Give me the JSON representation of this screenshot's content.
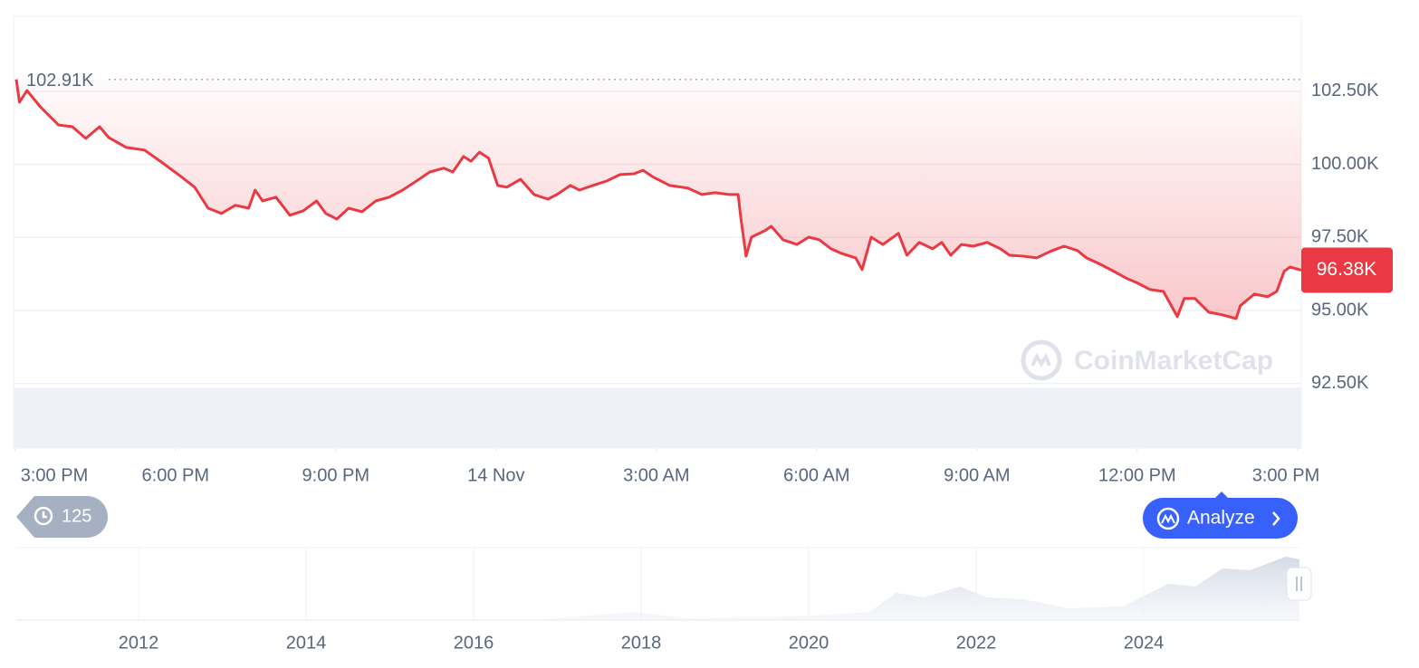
{
  "chart_data": {
    "type": "line",
    "x": [
      -8.98,
      -8.92,
      -8.78,
      -8.53,
      -8.19,
      -7.93,
      -7.68,
      -7.42,
      -7.25,
      -6.92,
      -6.58,
      -6.24,
      -5.9,
      -5.64,
      -5.39,
      -5.14,
      -4.88,
      -4.63,
      -4.51,
      -4.37,
      -4.12,
      -3.86,
      -3.61,
      -3.36,
      -3.19,
      -2.98,
      -2.76,
      -2.51,
      -2.25,
      -2.0,
      -1.75,
      -1.49,
      -1.24,
      -0.98,
      -0.81,
      -0.61,
      -0.47,
      -0.31,
      -0.14,
      0.03,
      0.2,
      0.46,
      0.71,
      0.97,
      1.14,
      1.39,
      1.56,
      1.81,
      2.07,
      2.32,
      2.58,
      2.75,
      2.92,
      3.25,
      3.59,
      3.85,
      4.1,
      4.36,
      4.53,
      4.58,
      4.68,
      4.78,
      5.03,
      5.15,
      5.37,
      5.63,
      5.85,
      6.05,
      6.27,
      6.47,
      6.73,
      6.85,
      7.02,
      7.24,
      7.53,
      7.69,
      7.92,
      8.17,
      8.34,
      8.51,
      8.71,
      8.93,
      9.19,
      9.44,
      9.61,
      9.86,
      10.12,
      10.37,
      10.63,
      10.88,
      11.05,
      11.31,
      11.56,
      11.81,
      11.98,
      12.24,
      12.49,
      12.75,
      12.88,
      13.08,
      13.34,
      13.59,
      13.85,
      13.93,
      14.19,
      14.44,
      14.61,
      14.75,
      14.86,
      15.07
    ],
    "values": [
      102910,
      102130,
      102530,
      101970,
      101350,
      101290,
      100890,
      101290,
      100920,
      100580,
      100490,
      100050,
      99590,
      99220,
      98500,
      98320,
      98600,
      98500,
      99120,
      98750,
      98880,
      98260,
      98410,
      98750,
      98320,
      98130,
      98500,
      98380,
      98750,
      98880,
      99120,
      99430,
      99740,
      99870,
      99740,
      100270,
      100110,
      100420,
      100210,
      99280,
      99220,
      99490,
      98970,
      98810,
      98970,
      99280,
      99120,
      99280,
      99430,
      99650,
      99680,
      99800,
      99590,
      99280,
      99190,
      98970,
      99030,
      98970,
      98970,
      98190,
      96860,
      97510,
      97730,
      97880,
      97420,
      97260,
      97510,
      97420,
      97110,
      96950,
      96800,
      96400,
      97510,
      97260,
      97640,
      96890,
      97330,
      97110,
      97330,
      96890,
      97260,
      97200,
      97330,
      97110,
      96890,
      96860,
      96800,
      97020,
      97200,
      97050,
      96800,
      96580,
      96340,
      96090,
      95960,
      95720,
      95650,
      94790,
      95410,
      95410,
      94940,
      94850,
      94720,
      95160,
      95560,
      95470,
      95650,
      96340,
      96490,
      96380
    ],
    "color": "#ea3943",
    "xlim": [
      -9.03,
      15.07
    ],
    "xticks": [
      {
        "value": -9,
        "label": "3:00 PM"
      },
      {
        "value": -6,
        "label": "6:00 PM"
      },
      {
        "value": -3,
        "label": "9:00 PM"
      },
      {
        "value": 0,
        "label": "14 Nov"
      },
      {
        "value": 3,
        "label": "3:00 AM"
      },
      {
        "value": 6,
        "label": "6:00 AM"
      },
      {
        "value": 9,
        "label": "9:00 AM"
      },
      {
        "value": 12,
        "label": "12:00 PM"
      },
      {
        "value": 15,
        "label": "3:00 PM"
      }
    ],
    "ylim": [
      90290,
      105070
    ],
    "yticks": [
      {
        "value": 92500,
        "label": "92.50K"
      },
      {
        "value": 95000,
        "label": "95.00K"
      },
      {
        "value": 97500,
        "label": "97.50K"
      },
      {
        "value": 100000,
        "label": "100.00K"
      },
      {
        "value": 102500,
        "label": "102.50K"
      }
    ],
    "grid": true,
    "max_label": {
      "value": 102910,
      "label": "102.91K"
    },
    "last_label": {
      "value": 96380,
      "label": "96.38K"
    },
    "watermark": "CoinMarketCap",
    "history_count": 125,
    "analyze_button": "Analyze",
    "navigator": {
      "xlim": [
        2010.54,
        2025.86
      ],
      "xticks": [
        2012,
        2014,
        2016,
        2018,
        2020,
        2022,
        2024
      ]
    }
  }
}
